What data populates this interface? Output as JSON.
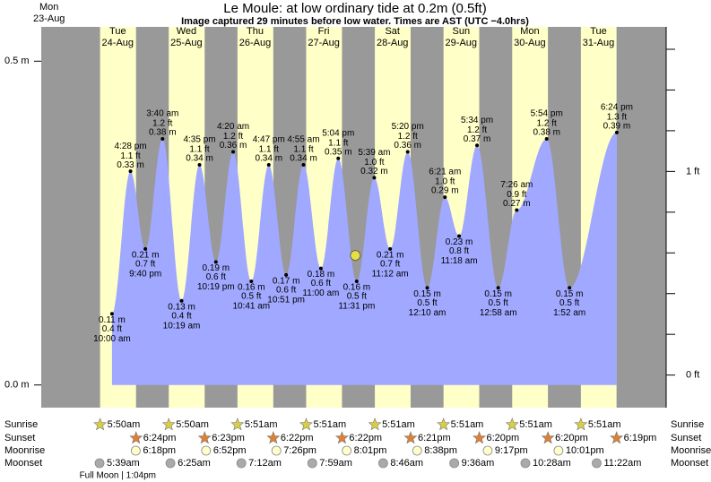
{
  "chart_data": {
    "type": "tide",
    "title": "Le Moule: at low  ordinary tide at 0.2m (0.5ft)",
    "subtitle": "Image captured 29 minutes before low water. Times are AST (UTC −4.0hrs)",
    "ylim": [
      -0.035,
      0.553
    ],
    "yticks": [
      {
        "value": 0,
        "label": "0.0 m"
      },
      {
        "value": 0.5,
        "label": "0.5 m"
      }
    ],
    "y2lim": [
      -0.16,
      1.71
    ],
    "y2ticks": [
      {
        "value": 0,
        "label": "0 ft"
      },
      {
        "value": 1,
        "label": "1 ft"
      }
    ],
    "y2minor_ticks": [
      0.2,
      0.4,
      0.6,
      0.8,
      1.2,
      1.4,
      1.6
    ],
    "colors": {
      "night": "#999999",
      "day": "#ffffc8",
      "water": "#a0a8ff",
      "date": "#cc0000",
      "sunrise": "#d8d040",
      "sunset": "#e08030",
      "moonrise": "#ffffcc",
      "moonset": "#aaaaaa",
      "now": "#e8e040"
    },
    "row_labels": [
      "Sunrise",
      "Sunset",
      "Moonrise",
      "Moonset"
    ],
    "days": [
      {
        "weekday": "Mon",
        "date": "23-Aug",
        "sunrise": null,
        "sunset": null,
        "moonrise": null,
        "moonset": null,
        "tides": []
      },
      {
        "weekday": "Tue",
        "date": "24-Aug",
        "sunrise": "5:50am",
        "sunset": "6:24pm",
        "moonrise": "6:18pm",
        "moonset": "5:39am",
        "moon_phase": "Full Moon | 1:04pm",
        "tides": [
          {
            "time": "10:00 am",
            "height": {
              "value": 0.11,
              "label": "0.11 m"
            },
            "height_ft": {
              "value": 0.4,
              "label": "0.4 ft"
            }
          },
          {
            "time": "4:28 pm",
            "height": {
              "value": 0.33,
              "label": "0.33 m"
            },
            "height_ft": {
              "value": 1.1,
              "label": "1.1 ft"
            }
          },
          {
            "time": "9:40 pm",
            "height": {
              "value": 0.21,
              "label": "0.21 m"
            },
            "height_ft": {
              "value": 0.7,
              "label": "0.7 ft"
            }
          }
        ]
      },
      {
        "weekday": "Wed",
        "date": "25-Aug",
        "sunrise": "5:50am",
        "sunset": "6:23pm",
        "moonrise": "6:52pm",
        "moonset": "6:25am",
        "tides": [
          {
            "time": "3:40 am",
            "height": {
              "value": 0.38,
              "label": "0.38 m"
            },
            "height_ft": {
              "value": 1.2,
              "label": "1.2 ft"
            }
          },
          {
            "time": "10:19 am",
            "height": {
              "value": 0.13,
              "label": "0.13 m"
            },
            "height_ft": {
              "value": 0.4,
              "label": "0.4 ft"
            }
          },
          {
            "time": "4:35 pm",
            "height": {
              "value": 0.34,
              "label": "0.34 m"
            },
            "height_ft": {
              "value": 1.1,
              "label": "1.1 ft"
            }
          },
          {
            "time": "10:19 pm",
            "height": {
              "value": 0.19,
              "label": "0.19 m"
            },
            "height_ft": {
              "value": 0.6,
              "label": "0.6 ft"
            }
          }
        ]
      },
      {
        "weekday": "Thu",
        "date": "26-Aug",
        "sunrise": "5:51am",
        "sunset": "6:22pm",
        "moonrise": "7:26pm",
        "moonset": "7:12am",
        "tides": [
          {
            "time": "4:20 am",
            "height": {
              "value": 0.36,
              "label": "0.36 m"
            },
            "height_ft": {
              "value": 1.2,
              "label": "1.2 ft"
            }
          },
          {
            "time": "10:41 am",
            "height": {
              "value": 0.16,
              "label": "0.16 m"
            },
            "height_ft": {
              "value": 0.5,
              "label": "0.5 ft"
            }
          },
          {
            "time": "4:47 pm",
            "height": {
              "value": 0.34,
              "label": "0.34 m"
            },
            "height_ft": {
              "value": 1.1,
              "label": "1.1 ft"
            }
          },
          {
            "time": "10:51 pm",
            "height": {
              "value": 0.17,
              "label": "0.17 m"
            },
            "height_ft": {
              "value": 0.6,
              "label": "0.6 ft"
            }
          }
        ]
      },
      {
        "weekday": "Fri",
        "date": "27-Aug",
        "sunrise": "5:51am",
        "sunset": "6:22pm",
        "moonrise": "8:01pm",
        "moonset": "7:59am",
        "now": {
          "height_m": 0.2,
          "minutes_before_low": 29
        },
        "tides": [
          {
            "time": "4:55 am",
            "height": {
              "value": 0.34,
              "label": "0.34 m"
            },
            "height_ft": {
              "value": 1.1,
              "label": "1.1 ft"
            }
          },
          {
            "time": "11:00 am",
            "height": {
              "value": 0.18,
              "label": "0.18 m"
            },
            "height_ft": {
              "value": 0.6,
              "label": "0.6 ft"
            }
          },
          {
            "time": "5:04 pm",
            "height": {
              "value": 0.35,
              "label": "0.35 m"
            },
            "height_ft": {
              "value": 1.1,
              "label": "1.1 ft"
            }
          },
          {
            "time": "11:31 pm",
            "height": {
              "value": 0.16,
              "label": "0.16 m"
            },
            "height_ft": {
              "value": 0.5,
              "label": "0.5 ft"
            }
          }
        ]
      },
      {
        "weekday": "Sat",
        "date": "28-Aug",
        "sunrise": "5:51am",
        "sunset": "6:21pm",
        "moonrise": "8:38pm",
        "moonset": "8:46am",
        "tides": [
          {
            "time": "5:39 am",
            "height": {
              "value": 0.32,
              "label": "0.32 m"
            },
            "height_ft": {
              "value": 1.0,
              "label": "1.0 ft"
            }
          },
          {
            "time": "11:12 am",
            "height": {
              "value": 0.21,
              "label": "0.21 m"
            },
            "height_ft": {
              "value": 0.7,
              "label": "0.7 ft"
            }
          },
          {
            "time": "5:20 pm",
            "height": {
              "value": 0.36,
              "label": "0.36 m"
            },
            "height_ft": {
              "value": 1.2,
              "label": "1.2 ft"
            }
          }
        ]
      },
      {
        "weekday": "Sun",
        "date": "29-Aug",
        "sunrise": "5:51am",
        "sunset": "6:20pm",
        "moonrise": "9:17pm",
        "moonset": "9:36am",
        "tides": [
          {
            "time": "12:10 am",
            "height": {
              "value": 0.15,
              "label": "0.15 m"
            },
            "height_ft": {
              "value": 0.5,
              "label": "0.5 ft"
            }
          },
          {
            "time": "6:21 am",
            "height": {
              "value": 0.29,
              "label": "0.29 m"
            },
            "height_ft": {
              "value": 1.0,
              "label": "1.0 ft"
            }
          },
          {
            "time": "11:18 am",
            "height": {
              "value": 0.23,
              "label": "0.23 m"
            },
            "height_ft": {
              "value": 0.8,
              "label": "0.8 ft"
            }
          },
          {
            "time": "5:34 pm",
            "height": {
              "value": 0.37,
              "label": "0.37 m"
            },
            "height_ft": {
              "value": 1.2,
              "label": "1.2 ft"
            }
          }
        ]
      },
      {
        "weekday": "Mon",
        "date": "30-Aug",
        "sunrise": "5:51am",
        "sunset": "6:20pm",
        "moonrise": "10:01pm",
        "moonset": "10:28am",
        "tides": [
          {
            "time": "12:58 am",
            "height": {
              "value": 0.15,
              "label": "0.15 m"
            },
            "height_ft": {
              "value": 0.5,
              "label": "0.5 ft"
            }
          },
          {
            "time": "7:26 am",
            "height": {
              "value": 0.27,
              "label": "0.27 m"
            },
            "height_ft": {
              "value": 0.9,
              "label": "0.9 ft"
            }
          },
          {
            "time": "5:54 pm",
            "height": {
              "value": 0.38,
              "label": "0.38 m"
            },
            "height_ft": {
              "value": 1.2,
              "label": "1.2 ft"
            }
          }
        ]
      },
      {
        "weekday": "Tue",
        "date": "31-Aug",
        "sunrise": "5:51am",
        "sunset": "6:19pm",
        "moonrise": null,
        "moonset": "11:22am",
        "tides": [
          {
            "time": "1:52 am",
            "height": {
              "value": 0.15,
              "label": "0.15 m"
            },
            "height_ft": {
              "value": 0.5,
              "label": "0.5 ft"
            }
          },
          {
            "time": "6:24 pm",
            "height": {
              "value": 0.39,
              "label": "0.39 m"
            },
            "height_ft": {
              "value": 1.3,
              "label": "1.3 ft"
            }
          }
        ]
      }
    ]
  }
}
